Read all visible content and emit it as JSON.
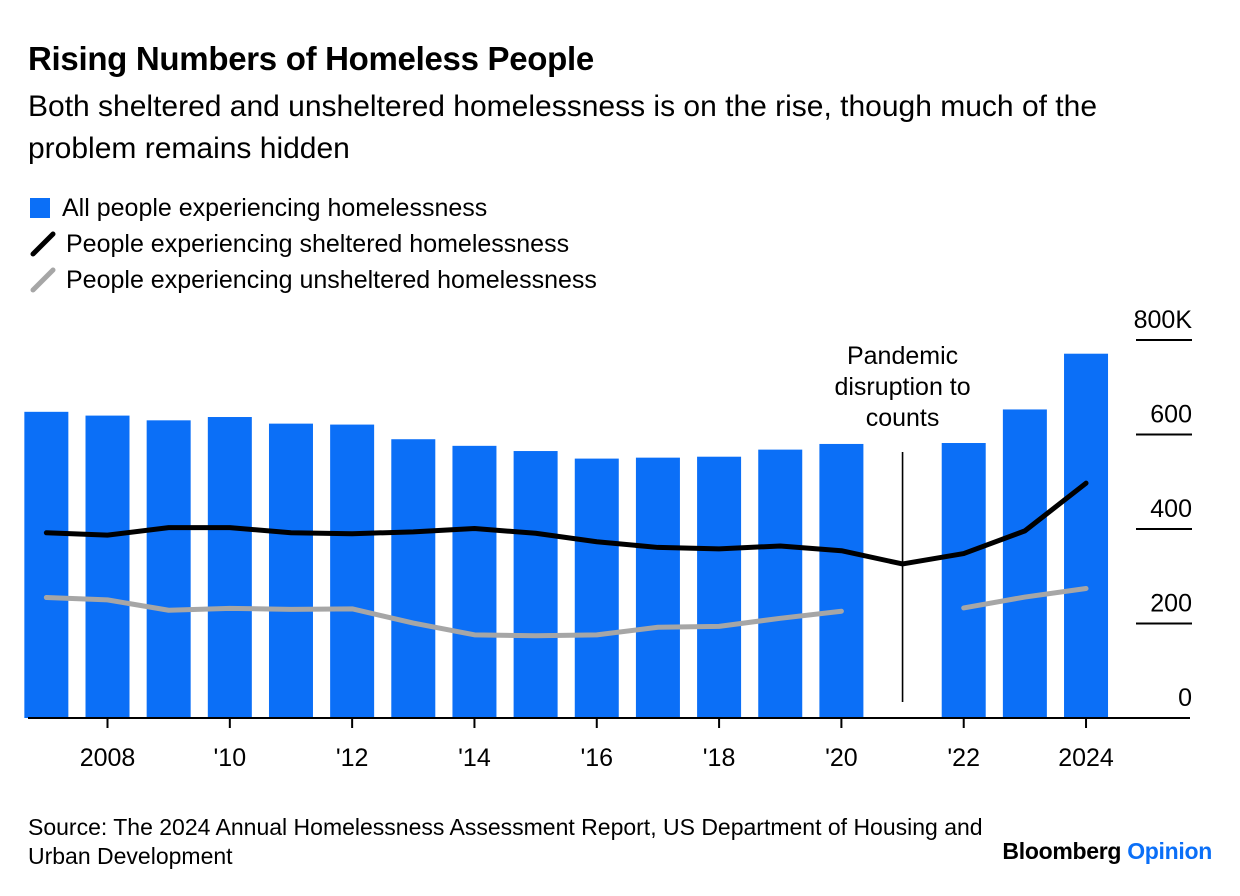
{
  "title": "Rising Numbers of Homeless People",
  "subtitle": "Both sheltered and unsheltered homelessness is on the rise, though much of the problem remains hidden",
  "legend": [
    {
      "label": "All people experiencing homelessness",
      "color": "#0b6ff7",
      "kind": "bar"
    },
    {
      "label": "People experiencing sheltered homelessness",
      "color": "#000000",
      "kind": "line"
    },
    {
      "label": "People experiencing unsheltered homelessness",
      "color": "#a6a6a6",
      "kind": "line"
    }
  ],
  "source": "Source: The 2024 Annual Homelessness Assessment Report, US Department of Housing and Urban Development",
  "brand": {
    "name": "Bloomberg",
    "accent": "Opinion"
  },
  "chart_data": {
    "type": "bar",
    "x": [
      2007,
      2008,
      2009,
      2010,
      2011,
      2012,
      2013,
      2014,
      2015,
      2016,
      2017,
      2018,
      2019,
      2020,
      2021,
      2022,
      2023,
      2024
    ],
    "xlim": [
      2006.7,
      2025.7
    ],
    "x_tick_values": [
      2008,
      2010,
      2012,
      2014,
      2016,
      2018,
      2020,
      2022,
      2024
    ],
    "x_tick_labels": [
      "2008",
      "'10",
      "'12",
      "'14",
      "'16",
      "'18",
      "'20",
      "'22",
      "2024"
    ],
    "y_ticks": [
      "0",
      "200",
      "400",
      "600",
      "800K"
    ],
    "y_tick_values": [
      0,
      200,
      400,
      600,
      800
    ],
    "ylim": [
      0,
      800
    ],
    "series": [
      {
        "name": "All people experiencing homelessness",
        "type": "bar",
        "color": "#0b6ff7",
        "values": [
          648,
          640,
          630,
          637,
          623,
          621,
          590,
          576,
          565,
          549,
          551,
          553,
          568,
          580,
          null,
          582,
          653,
          771
        ]
      },
      {
        "name": "People experiencing sheltered homelessness",
        "type": "line",
        "color": "#000000",
        "values": [
          392,
          387,
          403,
          403,
          392,
          390,
          394,
          401,
          391,
          373,
          361,
          358,
          364,
          354,
          326,
          348,
          396,
          497
        ]
      },
      {
        "name": "People experiencing unsheltered homelessness",
        "type": "line",
        "color": "#a6a6a6",
        "values": [
          255,
          250,
          228,
          232,
          230,
          231,
          201,
          176,
          174,
          176,
          192,
          194,
          211,
          226,
          null,
          233,
          256,
          274
        ]
      }
    ],
    "annotations": [
      {
        "text": [
          "Pandemic",
          "disruption to",
          "counts"
        ],
        "x": 2021
      }
    ],
    "grid": false,
    "y_axis_side": "right",
    "legend_position": "top-left"
  }
}
